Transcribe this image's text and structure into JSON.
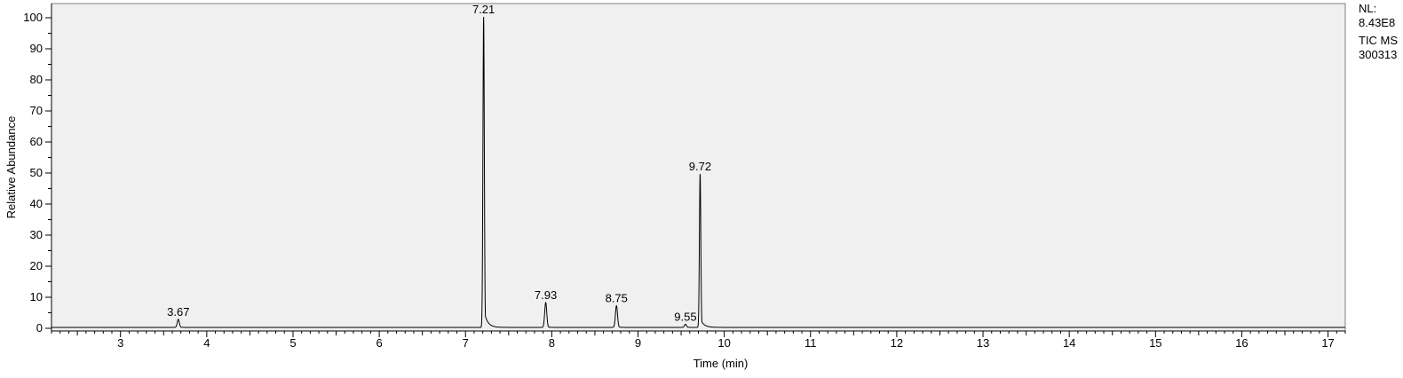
{
  "info": {
    "nl_label": "NL:",
    "nl_value": "8.43E8",
    "scan_type": "TIC  MS",
    "sample_id": "300313"
  },
  "chart_data": {
    "type": "line",
    "title": "",
    "xlabel": "Time (min)",
    "ylabel": "Relative Abundance",
    "xlim": [
      2.2,
      17.2
    ],
    "ylim": [
      0,
      100
    ],
    "x_ticks": [
      3,
      4,
      5,
      6,
      7,
      8,
      9,
      10,
      11,
      12,
      13,
      14,
      15,
      16,
      17
    ],
    "y_ticks": [
      0,
      10,
      20,
      30,
      40,
      50,
      60,
      70,
      80,
      90,
      100
    ],
    "grid": false,
    "plot_background": "#f0f0f0",
    "line_color": "#000000",
    "baseline": 0.3,
    "peaks": [
      {
        "rt": 3.67,
        "height": 2.6,
        "label": "3.67"
      },
      {
        "rt": 7.21,
        "height": 100,
        "label": "7.21"
      },
      {
        "rt": 7.93,
        "height": 8.0,
        "label": "7.93"
      },
      {
        "rt": 8.75,
        "height": 7.0,
        "label": "8.75"
      },
      {
        "rt": 9.55,
        "height": 1.0,
        "label": "9.55"
      },
      {
        "rt": 9.72,
        "height": 49.5,
        "label": "9.72"
      }
    ]
  }
}
